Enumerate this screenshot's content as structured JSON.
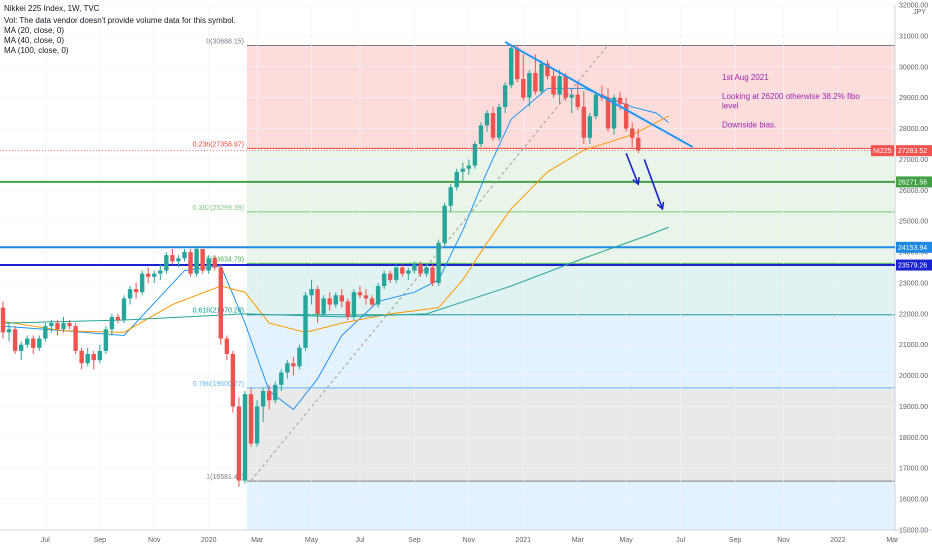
{
  "chart_data": {
    "type": "candlestick",
    "title": "Nikkei 225 Index, 1W, TVC",
    "legend": [
      "Vol: The data vendor doesn't provide volume data for this symbol.",
      "MA (20, close, 0)",
      "MA (40, close, 0)",
      "MA (100, close, 0)"
    ],
    "currency": "JPY",
    "ylim": [
      15000,
      32000
    ],
    "y_ticks": [
      "32000.00",
      "31000.00",
      "30000.00",
      "29000.00",
      "28000.00",
      "27000.00",
      "26000.00",
      "25000.00",
      "24000.00",
      "23000.00",
      "22000.00",
      "21000.00",
      "20000.00",
      "19000.00",
      "18000.00",
      "17000.00",
      "16000.00",
      "15000.00"
    ],
    "x_ticks": [
      "Jul",
      "Sep",
      "Nov",
      "2020",
      "Mar",
      "May",
      "Jul",
      "Sep",
      "Nov",
      "2021",
      "Mar",
      "May",
      "Jul",
      "Sep",
      "Nov",
      "2022",
      "Mar"
    ],
    "fib_levels": [
      {
        "ratio": "0",
        "value": 30688.15,
        "label": "0(30688.15)"
      },
      {
        "ratio": "0.236",
        "value": 27358.97,
        "label": "0.236(27358.97)"
      },
      {
        "ratio": "0.382",
        "value": 25299.39,
        "label": "0.382(25299.39)"
      },
      {
        "ratio": "0.5",
        "value": 23634.79,
        "label": "0.5(23634.79)"
      },
      {
        "ratio": "0.618",
        "value": 21970.2,
        "label": "0.618(21970.20)"
      },
      {
        "ratio": "0.786",
        "value": 19600.27,
        "label": "0.786(19600.27)"
      },
      {
        "ratio": "1",
        "value": 16581.42,
        "label": "1(16581.42)"
      }
    ],
    "horizontal_lines": [
      {
        "value": 26271.56,
        "label": "26271.56",
        "color": "#43a047"
      },
      {
        "value": 24153.94,
        "label": "24153.94",
        "color": "#1e88e5"
      },
      {
        "value": 23579.26,
        "label": "23579.26",
        "color": "#1a23d1"
      }
    ],
    "last_price": {
      "symbol": "NI225",
      "value": "27283.52",
      "color": "#f05350"
    },
    "annotation": {
      "lines": [
        "1st Aug 2021",
        "",
        "Looking at 26200 otherwise 38.2% fibo",
        "level",
        "",
        "Downside bias."
      ]
    },
    "candles": [
      {
        "o": 22200,
        "h": 22400,
        "l": 21200,
        "c": 21400
      },
      {
        "o": 21400,
        "h": 21700,
        "l": 21100,
        "c": 21500
      },
      {
        "o": 21500,
        "h": 21600,
        "l": 20700,
        "c": 20800
      },
      {
        "o": 20800,
        "h": 21100,
        "l": 20500,
        "c": 21000
      },
      {
        "o": 21000,
        "h": 21300,
        "l": 20900,
        "c": 21200
      },
      {
        "o": 21200,
        "h": 21300,
        "l": 20700,
        "c": 20900
      },
      {
        "o": 20900,
        "h": 21300,
        "l": 20800,
        "c": 21200
      },
      {
        "o": 21200,
        "h": 21700,
        "l": 21100,
        "c": 21600
      },
      {
        "o": 21600,
        "h": 21800,
        "l": 21400,
        "c": 21700
      },
      {
        "o": 21700,
        "h": 21800,
        "l": 21300,
        "c": 21500
      },
      {
        "o": 21500,
        "h": 21900,
        "l": 21400,
        "c": 21700
      },
      {
        "o": 21700,
        "h": 21800,
        "l": 21500,
        "c": 21600
      },
      {
        "o": 21600,
        "h": 21700,
        "l": 20700,
        "c": 20800
      },
      {
        "o": 20800,
        "h": 20900,
        "l": 20200,
        "c": 20400
      },
      {
        "o": 20400,
        "h": 20900,
        "l": 20300,
        "c": 20700
      },
      {
        "o": 20700,
        "h": 20800,
        "l": 20200,
        "c": 20500
      },
      {
        "o": 20500,
        "h": 21000,
        "l": 20400,
        "c": 20800
      },
      {
        "o": 20800,
        "h": 21600,
        "l": 20700,
        "c": 21500
      },
      {
        "o": 21500,
        "h": 22000,
        "l": 21300,
        "c": 21900
      },
      {
        "o": 21900,
        "h": 22000,
        "l": 21700,
        "c": 21800
      },
      {
        "o": 21800,
        "h": 22600,
        "l": 21700,
        "c": 22500
      },
      {
        "o": 22500,
        "h": 22900,
        "l": 22300,
        "c": 22800
      },
      {
        "o": 22800,
        "h": 23000,
        "l": 22500,
        "c": 22700
      },
      {
        "o": 22700,
        "h": 23400,
        "l": 22600,
        "c": 23300
      },
      {
        "o": 23300,
        "h": 23500,
        "l": 23000,
        "c": 23200
      },
      {
        "o": 23200,
        "h": 23400,
        "l": 23000,
        "c": 23300
      },
      {
        "o": 23300,
        "h": 23600,
        "l": 23100,
        "c": 23400
      },
      {
        "o": 23400,
        "h": 24000,
        "l": 23300,
        "c": 23900
      },
      {
        "o": 23900,
        "h": 24100,
        "l": 23600,
        "c": 23700
      },
      {
        "o": 23700,
        "h": 23900,
        "l": 23500,
        "c": 23800
      },
      {
        "o": 23800,
        "h": 24100,
        "l": 23700,
        "c": 24000
      },
      {
        "o": 24000,
        "h": 24100,
        "l": 23200,
        "c": 23300
      },
      {
        "o": 23300,
        "h": 24200,
        "l": 23200,
        "c": 24100
      },
      {
        "o": 24100,
        "h": 24100,
        "l": 23300,
        "c": 23400
      },
      {
        "o": 23400,
        "h": 23900,
        "l": 23300,
        "c": 23800
      },
      {
        "o": 23800,
        "h": 23900,
        "l": 23400,
        "c": 23500
      },
      {
        "o": 23500,
        "h": 23600,
        "l": 21000,
        "c": 21200
      },
      {
        "o": 21200,
        "h": 21300,
        "l": 20500,
        "c": 20700
      },
      {
        "o": 20700,
        "h": 20800,
        "l": 18800,
        "c": 19000
      },
      {
        "o": 19000,
        "h": 19300,
        "l": 16400,
        "c": 16600
      },
      {
        "o": 16600,
        "h": 19500,
        "l": 16500,
        "c": 19400
      },
      {
        "o": 19400,
        "h": 19600,
        "l": 17700,
        "c": 17800
      },
      {
        "o": 17800,
        "h": 19200,
        "l": 17700,
        "c": 19000
      },
      {
        "o": 19000,
        "h": 19600,
        "l": 18500,
        "c": 19500
      },
      {
        "o": 19500,
        "h": 19700,
        "l": 18900,
        "c": 19200
      },
      {
        "o": 19200,
        "h": 19800,
        "l": 19100,
        "c": 19700
      },
      {
        "o": 19700,
        "h": 20200,
        "l": 19500,
        "c": 20100
      },
      {
        "o": 20100,
        "h": 20500,
        "l": 19900,
        "c": 20400
      },
      {
        "o": 20400,
        "h": 20600,
        "l": 20000,
        "c": 20300
      },
      {
        "o": 20300,
        "h": 21000,
        "l": 20200,
        "c": 20900
      },
      {
        "o": 20900,
        "h": 22700,
        "l": 20800,
        "c": 22600
      },
      {
        "o": 22600,
        "h": 23100,
        "l": 22300,
        "c": 22800
      },
      {
        "o": 22800,
        "h": 22900,
        "l": 21700,
        "c": 22000
      },
      {
        "o": 22000,
        "h": 22600,
        "l": 21900,
        "c": 22500
      },
      {
        "o": 22500,
        "h": 22700,
        "l": 22100,
        "c": 22300
      },
      {
        "o": 22300,
        "h": 22700,
        "l": 22200,
        "c": 22600
      },
      {
        "o": 22600,
        "h": 22800,
        "l": 22200,
        "c": 22400
      },
      {
        "o": 22400,
        "h": 22500,
        "l": 21800,
        "c": 21900
      },
      {
        "o": 21900,
        "h": 22800,
        "l": 21800,
        "c": 22700
      },
      {
        "o": 22700,
        "h": 22900,
        "l": 22500,
        "c": 22600
      },
      {
        "o": 22600,
        "h": 22800,
        "l": 22300,
        "c": 22500
      },
      {
        "o": 22500,
        "h": 22600,
        "l": 22200,
        "c": 22300
      },
      {
        "o": 22300,
        "h": 23000,
        "l": 22200,
        "c": 22900
      },
      {
        "o": 22900,
        "h": 23400,
        "l": 22800,
        "c": 23300
      },
      {
        "o": 23300,
        "h": 23400,
        "l": 23000,
        "c": 23100
      },
      {
        "o": 23100,
        "h": 23600,
        "l": 23000,
        "c": 23500
      },
      {
        "o": 23500,
        "h": 23600,
        "l": 23200,
        "c": 23300
      },
      {
        "o": 23300,
        "h": 23500,
        "l": 23100,
        "c": 23400
      },
      {
        "o": 23400,
        "h": 23700,
        "l": 23300,
        "c": 23600
      },
      {
        "o": 23600,
        "h": 23700,
        "l": 23200,
        "c": 23300
      },
      {
        "o": 23300,
        "h": 23600,
        "l": 23200,
        "c": 23500
      },
      {
        "o": 23500,
        "h": 23600,
        "l": 22900,
        "c": 23000
      },
      {
        "o": 23000,
        "h": 24400,
        "l": 22900,
        "c": 24300
      },
      {
        "o": 24300,
        "h": 25600,
        "l": 24200,
        "c": 25500
      },
      {
        "o": 25500,
        "h": 26200,
        "l": 25300,
        "c": 26100
      },
      {
        "o": 26100,
        "h": 26700,
        "l": 26000,
        "c": 26600
      },
      {
        "o": 26600,
        "h": 26900,
        "l": 26300,
        "c": 26700
      },
      {
        "o": 26700,
        "h": 27000,
        "l": 26500,
        "c": 26800
      },
      {
        "o": 26800,
        "h": 27600,
        "l": 26700,
        "c": 27500
      },
      {
        "o": 27500,
        "h": 28200,
        "l": 27400,
        "c": 28100
      },
      {
        "o": 28100,
        "h": 28600,
        "l": 27900,
        "c": 28500
      },
      {
        "o": 28500,
        "h": 28700,
        "l": 27600,
        "c": 27700
      },
      {
        "o": 27700,
        "h": 28800,
        "l": 27600,
        "c": 28700
      },
      {
        "o": 28700,
        "h": 29500,
        "l": 28500,
        "c": 29400
      },
      {
        "o": 29400,
        "h": 30700,
        "l": 29300,
        "c": 30600
      },
      {
        "o": 30600,
        "h": 30700,
        "l": 29500,
        "c": 29600
      },
      {
        "o": 29600,
        "h": 30400,
        "l": 28900,
        "c": 29000
      },
      {
        "o": 29000,
        "h": 29900,
        "l": 28700,
        "c": 29800
      },
      {
        "o": 29800,
        "h": 30400,
        "l": 29100,
        "c": 29200
      },
      {
        "o": 29200,
        "h": 30200,
        "l": 29100,
        "c": 30100
      },
      {
        "o": 30100,
        "h": 30200,
        "l": 29600,
        "c": 29700
      },
      {
        "o": 29700,
        "h": 29900,
        "l": 29000,
        "c": 29100
      },
      {
        "o": 29100,
        "h": 29900,
        "l": 28800,
        "c": 29700
      },
      {
        "o": 29700,
        "h": 29800,
        "l": 28900,
        "c": 29000
      },
      {
        "o": 29000,
        "h": 29300,
        "l": 28500,
        "c": 29100
      },
      {
        "o": 29100,
        "h": 29500,
        "l": 28600,
        "c": 28700
      },
      {
        "o": 28700,
        "h": 29200,
        "l": 27500,
        "c": 27700
      },
      {
        "o": 27700,
        "h": 28500,
        "l": 27500,
        "c": 28400
      },
      {
        "o": 28400,
        "h": 29200,
        "l": 28300,
        "c": 29100
      },
      {
        "o": 29100,
        "h": 29400,
        "l": 28900,
        "c": 29000
      },
      {
        "o": 29000,
        "h": 29300,
        "l": 27900,
        "c": 28000
      },
      {
        "o": 28000,
        "h": 29100,
        "l": 27800,
        "c": 29000
      },
      {
        "o": 29000,
        "h": 29200,
        "l": 28600,
        "c": 28800
      },
      {
        "o": 28800,
        "h": 29000,
        "l": 27900,
        "c": 28000
      },
      {
        "o": 28000,
        "h": 28200,
        "l": 27400,
        "c": 27700
      },
      {
        "o": 27700,
        "h": 28000,
        "l": 27200,
        "c": 27300
      }
    ],
    "ma20": [
      [
        0,
        21600
      ],
      [
        10,
        21450
      ],
      [
        20,
        21300
      ],
      [
        30,
        23400
      ],
      [
        36,
        23550
      ],
      [
        40,
        21700
      ],
      [
        44,
        19500
      ],
      [
        48,
        18900
      ],
      [
        52,
        19900
      ],
      [
        56,
        21300
      ],
      [
        62,
        22400
      ],
      [
        68,
        22700
      ],
      [
        72,
        23100
      ],
      [
        76,
        24700
      ],
      [
        80,
        26600
      ],
      [
        84,
        28300
      ],
      [
        90,
        29300
      ],
      [
        96,
        29300
      ],
      [
        100,
        29000
      ],
      [
        104,
        28700
      ],
      [
        108,
        28500
      ],
      [
        110,
        28200
      ]
    ],
    "ma40": [
      [
        0,
        21750
      ],
      [
        10,
        21450
      ],
      [
        20,
        21400
      ],
      [
        28,
        22300
      ],
      [
        36,
        22900
      ],
      [
        40,
        22700
      ],
      [
        44,
        21700
      ],
      [
        50,
        21400
      ],
      [
        56,
        21700
      ],
      [
        64,
        22000
      ],
      [
        72,
        22200
      ],
      [
        76,
        23100
      ],
      [
        80,
        24300
      ],
      [
        84,
        25400
      ],
      [
        90,
        26600
      ],
      [
        96,
        27300
      ],
      [
        104,
        27800
      ],
      [
        110,
        28400
      ]
    ],
    "ma100": [
      [
        0,
        21700
      ],
      [
        20,
        21800
      ],
      [
        40,
        22000
      ],
      [
        56,
        21900
      ],
      [
        70,
        22000
      ],
      [
        84,
        22900
      ],
      [
        96,
        23800
      ],
      [
        106,
        24500
      ],
      [
        110,
        24800
      ]
    ],
    "trendline": {
      "from": [
        83,
        30800
      ],
      "to": [
        114,
        27400
      ]
    },
    "diag_line": {
      "from": [
        41,
        16600
      ],
      "to": [
        100,
        30700
      ]
    },
    "arrows": [
      {
        "from": [
          103,
          27200
        ],
        "to": [
          105,
          26200
        ]
      },
      {
        "from": [
          106,
          27000
        ],
        "to": [
          109,
          25400
        ]
      }
    ]
  }
}
